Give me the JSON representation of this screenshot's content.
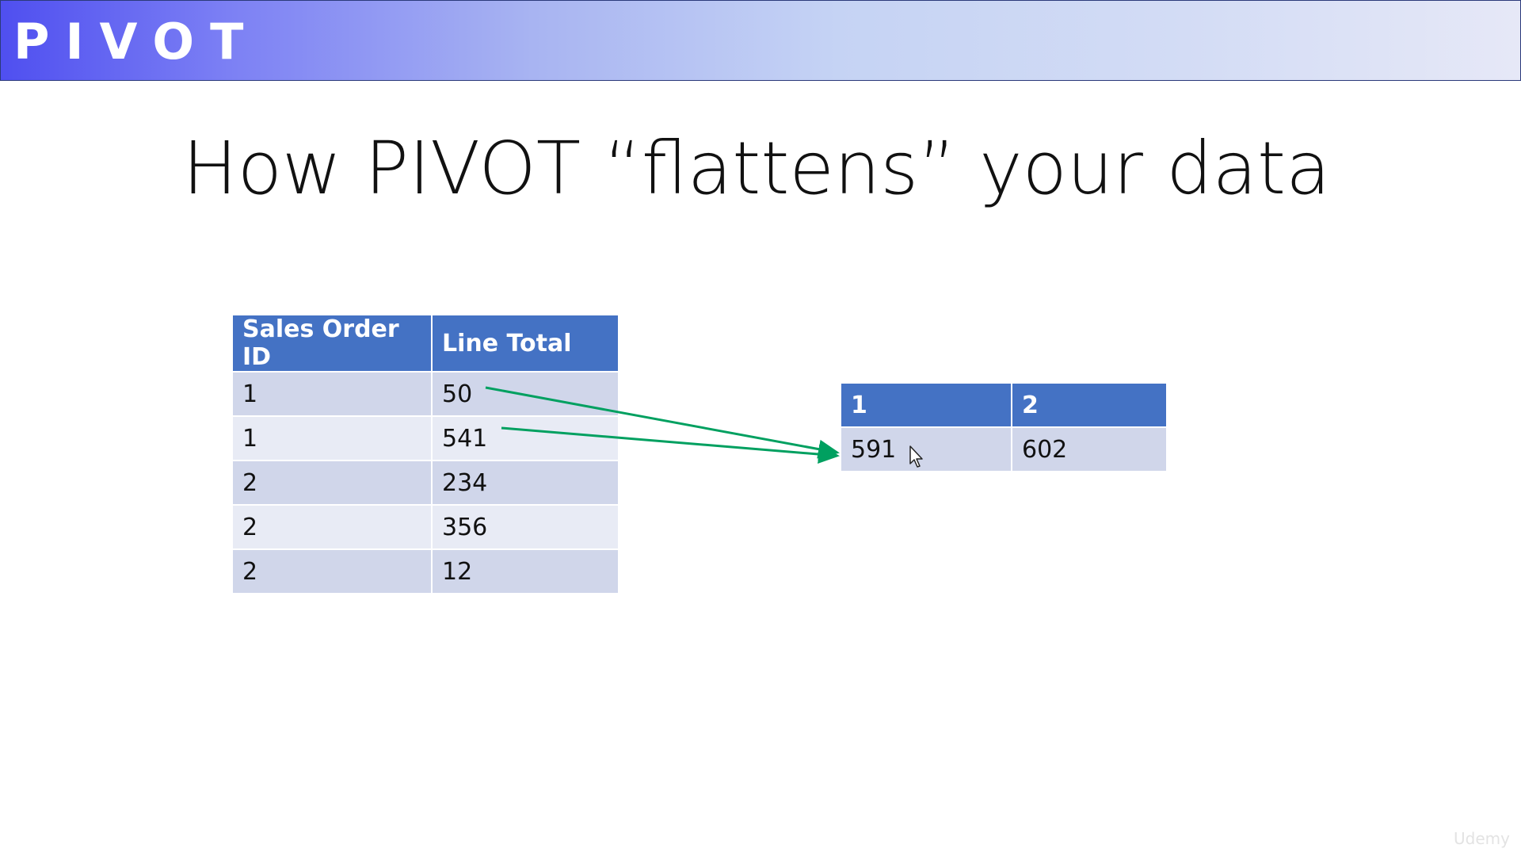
{
  "banner": {
    "title": "PIVOT"
  },
  "slide": {
    "title": "How PIVOT “flattens” your data"
  },
  "source_table": {
    "headers": [
      "Sales Order ID",
      "Line Total"
    ],
    "rows": [
      [
        "1",
        "50"
      ],
      [
        "1",
        "541"
      ],
      [
        "2",
        "234"
      ],
      [
        "2",
        "356"
      ],
      [
        "2",
        "12"
      ]
    ]
  },
  "result_table": {
    "headers": [
      "1",
      "2"
    ],
    "rows": [
      [
        "591",
        "602"
      ]
    ]
  },
  "colors": {
    "header_fill": "#4472c4",
    "row_dark": "#d0d6ea",
    "row_light": "#e8ebf5",
    "arrow": "#00a060"
  },
  "icons": [
    "mouse-cursor-icon",
    "arrow-icon"
  ],
  "watermark": "Udemy"
}
